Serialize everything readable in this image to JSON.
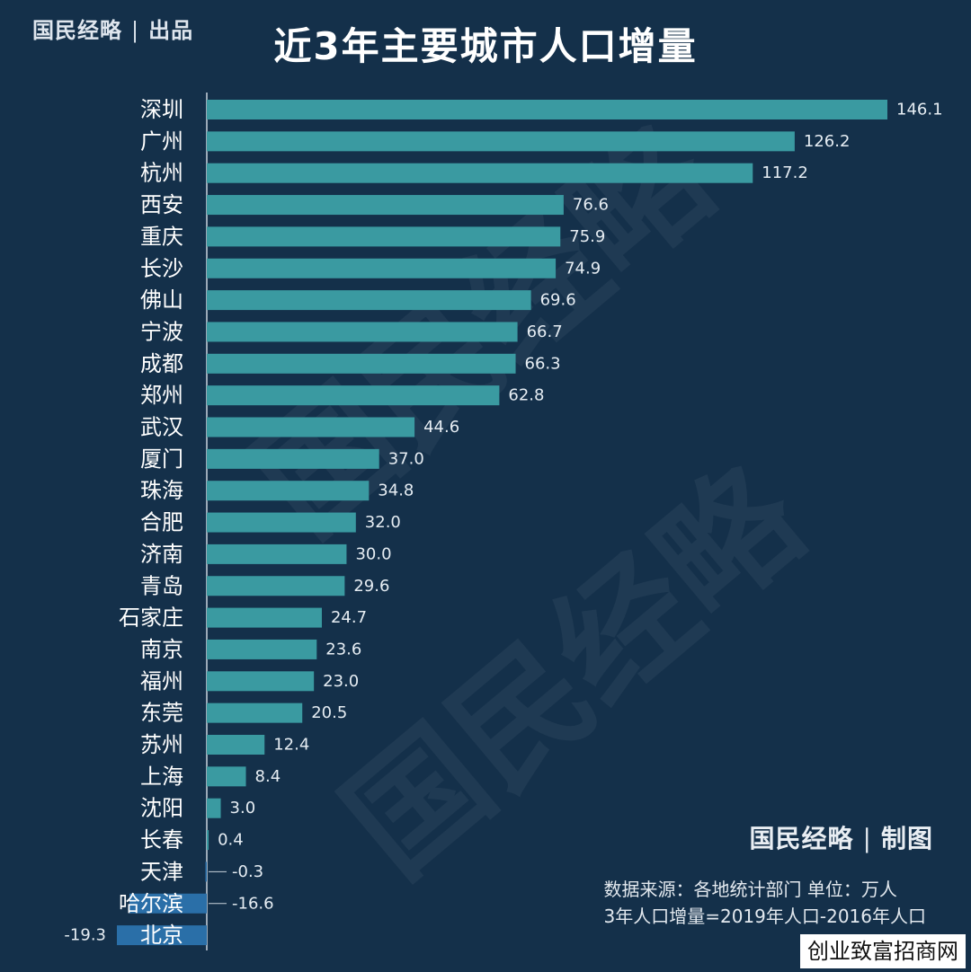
{
  "brand_top": {
    "name": "国民经略",
    "sep": "|",
    "tag": "出品"
  },
  "title": "近3年主要城市人口增量",
  "brand_bottom": {
    "name": "国民经略",
    "sep": "|",
    "tag": "制图"
  },
  "source_line1": "数据来源：各地统计部门 单位：万人",
  "source_line2": "3年人口增量=2019年人口-2016年人口",
  "corner_tag": "创业致富招商网",
  "watermark": "国民经略",
  "colors": {
    "positive": "#3a9aa1",
    "negative": "#2a6fa8",
    "axis": "#c9d3dc",
    "background": "#14304a"
  },
  "chart_data": {
    "type": "bar",
    "orientation": "horizontal",
    "title": "近3年主要城市人口增量",
    "unit": "万人",
    "categories": [
      "深圳",
      "广州",
      "杭州",
      "西安",
      "重庆",
      "长沙",
      "佛山",
      "宁波",
      "成都",
      "郑州",
      "武汉",
      "厦门",
      "珠海",
      "合肥",
      "济南",
      "青岛",
      "石家庄",
      "南京",
      "福州",
      "东莞",
      "苏州",
      "上海",
      "沈阳",
      "长春",
      "天津",
      "哈尔滨",
      "北京"
    ],
    "values": [
      146.1,
      126.2,
      117.2,
      76.6,
      75.9,
      74.9,
      69.6,
      66.7,
      66.3,
      62.8,
      44.6,
      37.0,
      34.8,
      32.0,
      30.0,
      29.6,
      24.7,
      23.6,
      23.0,
      20.5,
      12.4,
      8.4,
      3.0,
      0.4,
      -0.3,
      -16.6,
      -19.3
    ],
    "value_labels": [
      "146.1",
      "126.2",
      "117.2",
      "76.6",
      "75.9",
      "74.9",
      "69.6",
      "66.7",
      "66.3",
      "62.8",
      "44.6",
      "37.0",
      "34.8",
      "32.0",
      "30.0",
      "29.6",
      "24.7",
      "23.6",
      "23.0",
      "20.5",
      "12.4",
      "8.4",
      "3.0",
      "0.4",
      "-0.3",
      "-16.6",
      "-19.3"
    ],
    "xlim": [
      -19.3,
      146.1
    ],
    "grid": false,
    "legend": "none"
  }
}
